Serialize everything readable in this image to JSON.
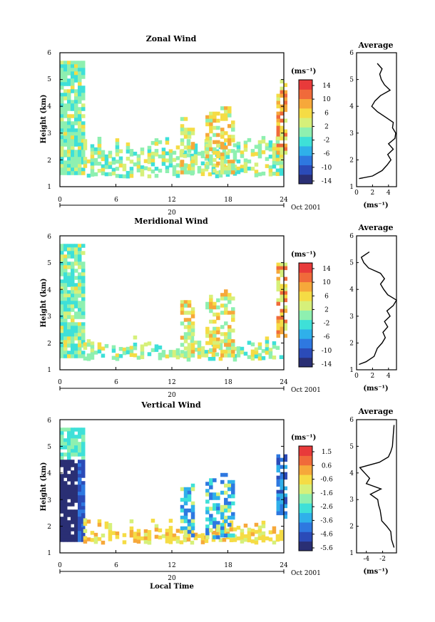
{
  "colors": {
    "scale": [
      "#2a2f74",
      "#2b4bb8",
      "#2e78e0",
      "#2fb0ea",
      "#3ee0d8",
      "#8ef0b0",
      "#d6f07a",
      "#f5dc45",
      "#f6a83a",
      "#f06a3a",
      "#e83a3a"
    ],
    "line": "#000000",
    "background": "#ffffff"
  },
  "x_axis": {
    "ticks": [
      "0",
      "6",
      "12",
      "18",
      "24",
      "0"
    ],
    "date_day": "20",
    "date_month": "Oct 2001",
    "label": "Local Time"
  },
  "chart_data": [
    {
      "type": "heatmap",
      "title": "Zonal Wind",
      "ylabel": "Height (km)",
      "xlim": [
        0,
        24
      ],
      "ylim": [
        1,
        6
      ],
      "yticks": [
        "1",
        "2",
        "3",
        "4",
        "5",
        "6"
      ],
      "colorbar": {
        "unit": "(ms⁻¹)",
        "labels": [
          "14",
          "10",
          "6",
          "2",
          "-2",
          "-6",
          "-10",
          "-14"
        ],
        "range": [
          -14,
          14
        ]
      },
      "field_description": "retrieved wind field, data mostly 1.4–3 km; 0–2.5 h column up to 6 km",
      "profile": {
        "title": "Average",
        "xlabel": "(ms⁻¹)",
        "xticks": [
          "0",
          "2",
          "4"
        ],
        "xlim": [
          0,
          5
        ],
        "heights": [
          1.3,
          1.4,
          1.6,
          1.8,
          2.0,
          2.2,
          2.4,
          2.6,
          2.8,
          3.0,
          3.2,
          3.4,
          3.6,
          3.8,
          4.0,
          4.2,
          4.4,
          4.6,
          4.8,
          5.0,
          5.2,
          5.4,
          5.6
        ],
        "values": [
          0.3,
          2.0,
          3.2,
          3.8,
          4.3,
          3.9,
          4.6,
          4.0,
          4.8,
          4.9,
          4.5,
          4.6,
          3.6,
          2.6,
          1.9,
          2.3,
          3.0,
          4.2,
          3.5,
          3.1,
          2.9,
          3.2,
          2.6
        ]
      }
    },
    {
      "type": "heatmap",
      "title": "Meridional Wind",
      "ylabel": "Height (km)",
      "xlim": [
        0,
        24
      ],
      "ylim": [
        1,
        6
      ],
      "yticks": [
        "1",
        "2",
        "3",
        "4",
        "5",
        "6"
      ],
      "colorbar": {
        "unit": "(ms⁻¹)",
        "labels": [
          "14",
          "10",
          "6",
          "2",
          "-2",
          "-6",
          "-10",
          "-14"
        ],
        "range": [
          -14,
          14
        ]
      },
      "field_description": "retrieved wind field, data mostly 1.4–2 km; 0–2.5 h column up to 6 km",
      "profile": {
        "title": "Average",
        "xlabel": "(ms⁻¹)",
        "xticks": [
          "0",
          "2",
          "4"
        ],
        "xlim": [
          0,
          5
        ],
        "heights": [
          1.2,
          1.3,
          1.5,
          1.8,
          2.0,
          2.2,
          2.4,
          2.6,
          2.8,
          3.0,
          3.2,
          3.4,
          3.6,
          3.8,
          4.0,
          4.2,
          4.4,
          4.6,
          4.8,
          5.0,
          5.2,
          5.4
        ],
        "values": [
          0.3,
          1.2,
          2.2,
          2.6,
          3.2,
          3.6,
          3.3,
          3.9,
          3.5,
          4.2,
          3.8,
          4.6,
          5.0,
          3.9,
          3.4,
          3.0,
          3.5,
          3.0,
          1.5,
          0.9,
          0.6,
          1.6
        ]
      }
    },
    {
      "type": "heatmap",
      "title": "Vertical Wind",
      "ylabel": "Height (km)",
      "xlim": [
        0,
        24
      ],
      "ylim": [
        1,
        6
      ],
      "yticks": [
        "1",
        "2",
        "3",
        "4",
        "5",
        "6"
      ],
      "colorbar": {
        "unit": "(ms⁻¹)",
        "labels": [
          "1.5",
          "0.6",
          "-0.6",
          "-1.6",
          "-2.6",
          "-3.6",
          "-4.6",
          "-5.6"
        ],
        "range": [
          -5.6,
          1.5
        ]
      },
      "field_description": "retrieved vertical wind, strong downdraft 0–2 h below 4.5 km",
      "profile": {
        "title": "Average",
        "xlabel": "(ms⁻¹)",
        "xticks": [
          "-4",
          "-2"
        ],
        "xlim": [
          -5.2,
          -0.3
        ],
        "heights": [
          1.2,
          1.5,
          1.8,
          2.0,
          2.2,
          2.4,
          2.6,
          2.8,
          3.0,
          3.2,
          3.4,
          3.6,
          3.8,
          4.0,
          4.2,
          4.4,
          4.6,
          4.8,
          5.0,
          5.4,
          5.8
        ],
        "values": [
          -0.6,
          -0.9,
          -1.0,
          -1.5,
          -2.1,
          -2.2,
          -2.3,
          -2.5,
          -2.6,
          -3.5,
          -2.2,
          -4.0,
          -3.6,
          -4.2,
          -4.8,
          -2.4,
          -1.3,
          -1.0,
          -0.8,
          -0.7,
          -0.6
        ]
      }
    }
  ]
}
